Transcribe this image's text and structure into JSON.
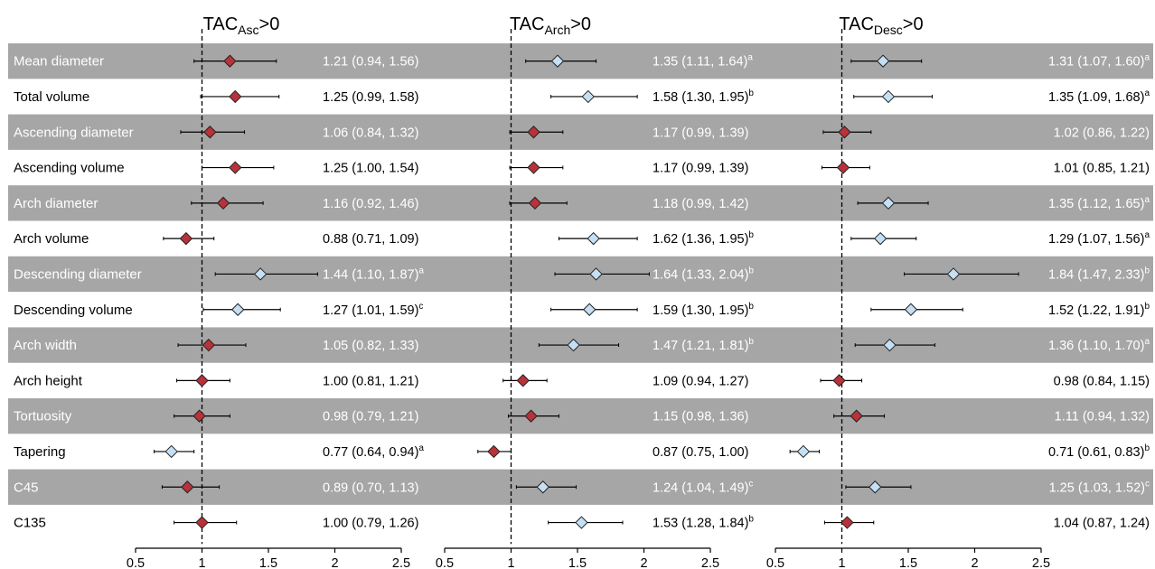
{
  "chart_data": {
    "type": "forest",
    "colors": {
      "band": "#a6a6a6",
      "sig_marker": "#c5e0f5",
      "nonsig_marker": "#b8323a",
      "band_text": "#ffffff",
      "text": "#000000"
    },
    "panels": [
      {
        "title_base": "TAC",
        "title_sub": "Asc",
        "title_suffix": ">0"
      },
      {
        "title_base": "TAC",
        "title_sub": "Arch",
        "title_suffix": ">0"
      },
      {
        "title_base": "TAC",
        "title_sub": "Desc",
        "title_suffix": ">0"
      }
    ],
    "x_axis": {
      "xlim": [
        0.5,
        2.5
      ],
      "ticks": [
        0.5,
        1,
        1.5,
        2,
        2.5
      ],
      "tick_labels": [
        "0.5",
        "1",
        "1.5",
        "2",
        "2.5"
      ],
      "reference_line": 1
    },
    "rows": [
      {
        "label": "Mean diameter",
        "shaded": true,
        "estimates": [
          {
            "or": 1.21,
            "lo": 0.94,
            "hi": 1.56,
            "text": "1.21 (0.94, 1.56)",
            "sup": "",
            "significant": false
          },
          {
            "or": 1.35,
            "lo": 1.11,
            "hi": 1.64,
            "text": "1.35 (1.11, 1.64)",
            "sup": "a",
            "significant": true
          },
          {
            "or": 1.31,
            "lo": 1.07,
            "hi": 1.6,
            "text": "1.31 (1.07, 1.60)",
            "sup": "a",
            "significant": true
          }
        ]
      },
      {
        "label": "Total volume",
        "shaded": false,
        "estimates": [
          {
            "or": 1.25,
            "lo": 0.99,
            "hi": 1.58,
            "text": "1.25 (0.99, 1.58)",
            "sup": "",
            "significant": false
          },
          {
            "or": 1.58,
            "lo": 1.3,
            "hi": 1.95,
            "text": "1.58 (1.30, 1.95)",
            "sup": "b",
            "significant": true
          },
          {
            "or": 1.35,
            "lo": 1.09,
            "hi": 1.68,
            "text": "1.35 (1.09, 1.68)",
            "sup": "a",
            "significant": true
          }
        ]
      },
      {
        "label": "Ascending diameter",
        "shaded": true,
        "estimates": [
          {
            "or": 1.06,
            "lo": 0.84,
            "hi": 1.32,
            "text": "1.06 (0.84, 1.32)",
            "sup": "",
            "significant": false
          },
          {
            "or": 1.17,
            "lo": 0.99,
            "hi": 1.39,
            "text": "1.17 (0.99, 1.39)",
            "sup": "",
            "significant": false
          },
          {
            "or": 1.02,
            "lo": 0.86,
            "hi": 1.22,
            "text": "1.02 (0.86, 1.22)",
            "sup": "",
            "significant": false
          }
        ]
      },
      {
        "label": "Ascending volume",
        "shaded": false,
        "estimates": [
          {
            "or": 1.25,
            "lo": 1.0,
            "hi": 1.54,
            "text": "1.25 (1.00, 1.54)",
            "sup": "",
            "significant": false
          },
          {
            "or": 1.17,
            "lo": 0.99,
            "hi": 1.39,
            "text": "1.17 (0.99, 1.39)",
            "sup": "",
            "significant": false
          },
          {
            "or": 1.01,
            "lo": 0.85,
            "hi": 1.21,
            "text": "1.01 (0.85, 1.21)",
            "sup": "",
            "significant": false
          }
        ]
      },
      {
        "label": "Arch diameter",
        "shaded": true,
        "estimates": [
          {
            "or": 1.16,
            "lo": 0.92,
            "hi": 1.46,
            "text": "1.16 (0.92, 1.46)",
            "sup": "",
            "significant": false
          },
          {
            "or": 1.18,
            "lo": 0.99,
            "hi": 1.42,
            "text": "1.18 (0.99, 1.42)",
            "sup": "",
            "significant": false
          },
          {
            "or": 1.35,
            "lo": 1.12,
            "hi": 1.65,
            "text": "1.35 (1.12, 1.65)",
            "sup": "a",
            "significant": true
          }
        ]
      },
      {
        "label": "Arch volume",
        "shaded": false,
        "estimates": [
          {
            "or": 0.88,
            "lo": 0.71,
            "hi": 1.09,
            "text": "0.88 (0.71, 1.09)",
            "sup": "",
            "significant": false
          },
          {
            "or": 1.62,
            "lo": 1.36,
            "hi": 1.95,
            "text": "1.62 (1.36, 1.95)",
            "sup": "b",
            "significant": true
          },
          {
            "or": 1.29,
            "lo": 1.07,
            "hi": 1.56,
            "text": "1.29 (1.07, 1.56)",
            "sup": "a",
            "significant": true
          }
        ]
      },
      {
        "label": "Descending diameter",
        "shaded": true,
        "estimates": [
          {
            "or": 1.44,
            "lo": 1.1,
            "hi": 1.87,
            "text": "1.44 (1.10, 1.87)",
            "sup": "a",
            "significant": true
          },
          {
            "or": 1.64,
            "lo": 1.33,
            "hi": 2.04,
            "text": "1.64 (1.33, 2.04)",
            "sup": "b",
            "significant": true
          },
          {
            "or": 1.84,
            "lo": 1.47,
            "hi": 2.33,
            "text": "1.84 (1.47, 2.33)",
            "sup": "b",
            "significant": true
          }
        ]
      },
      {
        "label": "Descending volume",
        "shaded": false,
        "estimates": [
          {
            "or": 1.27,
            "lo": 1.01,
            "hi": 1.59,
            "text": "1.27 (1.01, 1.59)",
            "sup": "c",
            "significant": true
          },
          {
            "or": 1.59,
            "lo": 1.3,
            "hi": 1.95,
            "text": "1.59 (1.30, 1.95)",
            "sup": "b",
            "significant": true
          },
          {
            "or": 1.52,
            "lo": 1.22,
            "hi": 1.91,
            "text": "1.52 (1.22, 1.91)",
            "sup": "b",
            "significant": true
          }
        ]
      },
      {
        "label": "Arch width",
        "shaded": true,
        "estimates": [
          {
            "or": 1.05,
            "lo": 0.82,
            "hi": 1.33,
            "text": "1.05 (0.82, 1.33)",
            "sup": "",
            "significant": false
          },
          {
            "or": 1.47,
            "lo": 1.21,
            "hi": 1.81,
            "text": "1.47 (1.21, 1.81)",
            "sup": "b",
            "significant": true
          },
          {
            "or": 1.36,
            "lo": 1.1,
            "hi": 1.7,
            "text": "1.36 (1.10, 1.70)",
            "sup": "a",
            "significant": true
          }
        ]
      },
      {
        "label": "Arch height",
        "shaded": false,
        "estimates": [
          {
            "or": 1.0,
            "lo": 0.81,
            "hi": 1.21,
            "text": "1.00 (0.81, 1.21)",
            "sup": "",
            "significant": false
          },
          {
            "or": 1.09,
            "lo": 0.94,
            "hi": 1.27,
            "text": "1.09 (0.94, 1.27)",
            "sup": "",
            "significant": false
          },
          {
            "or": 0.98,
            "lo": 0.84,
            "hi": 1.15,
            "text": "0.98 (0.84, 1.15)",
            "sup": "",
            "significant": false
          }
        ]
      },
      {
        "label": "Tortuosity",
        "shaded": true,
        "estimates": [
          {
            "or": 0.98,
            "lo": 0.79,
            "hi": 1.21,
            "text": "0.98 (0.79, 1.21)",
            "sup": "",
            "significant": false
          },
          {
            "or": 1.15,
            "lo": 0.98,
            "hi": 1.36,
            "text": "1.15 (0.98, 1.36)",
            "sup": "",
            "significant": false
          },
          {
            "or": 1.11,
            "lo": 0.94,
            "hi": 1.32,
            "text": "1.11 (0.94, 1.32)",
            "sup": "",
            "significant": false
          }
        ]
      },
      {
        "label": "Tapering",
        "shaded": false,
        "estimates": [
          {
            "or": 0.77,
            "lo": 0.64,
            "hi": 0.94,
            "text": "0.77 (0.64, 0.94)",
            "sup": "a",
            "significant": true
          },
          {
            "or": 0.87,
            "lo": 0.75,
            "hi": 1.0,
            "text": "0.87 (0.75, 1.00)",
            "sup": "",
            "significant": false
          },
          {
            "or": 0.71,
            "lo": 0.61,
            "hi": 0.83,
            "text": "0.71 (0.61, 0.83)",
            "sup": "b",
            "significant": true
          }
        ]
      },
      {
        "label": "C45",
        "shaded": true,
        "estimates": [
          {
            "or": 0.89,
            "lo": 0.7,
            "hi": 1.13,
            "text": "0.89 (0.70, 1.13)",
            "sup": "",
            "significant": false
          },
          {
            "or": 1.24,
            "lo": 1.04,
            "hi": 1.49,
            "text": "1.24 (1.04, 1.49)",
            "sup": "c",
            "significant": true
          },
          {
            "or": 1.25,
            "lo": 1.03,
            "hi": 1.52,
            "text": "1.25 (1.03, 1.52)",
            "sup": "c",
            "significant": true
          }
        ]
      },
      {
        "label": "C135",
        "shaded": false,
        "estimates": [
          {
            "or": 1.0,
            "lo": 0.79,
            "hi": 1.26,
            "text": "1.00 (0.79, 1.26)",
            "sup": "",
            "significant": false
          },
          {
            "or": 1.53,
            "lo": 1.28,
            "hi": 1.84,
            "text": "1.53 (1.28, 1.84)",
            "sup": "b",
            "significant": true
          },
          {
            "or": 1.04,
            "lo": 0.87,
            "hi": 1.24,
            "text": "1.04 (0.87, 1.24)",
            "sup": "",
            "significant": false
          }
        ]
      }
    ]
  }
}
